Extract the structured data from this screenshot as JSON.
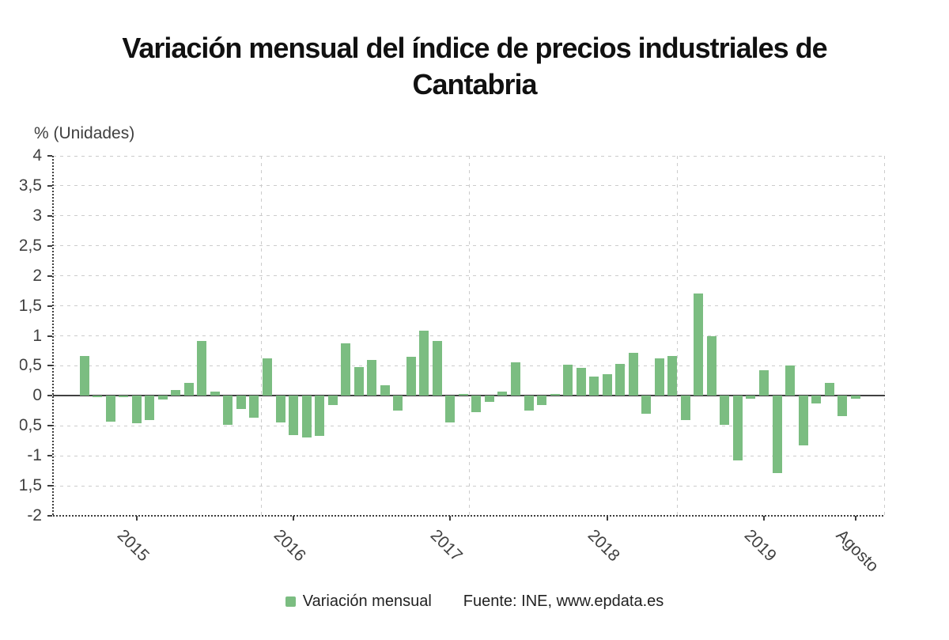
{
  "title_lines": [
    "Variación mensual del índice de precios industriales de",
    "Cantabria"
  ],
  "y_axis_title": "% (Unidades)",
  "legend": {
    "label": "Variación mensual"
  },
  "source": "Fuente: INE, www.epdata.es",
  "colors": {
    "bar": "#7bbd81",
    "grid": "#cccccc",
    "axis": "#3d3d3d",
    "tick_text": "#404040",
    "title_text": "#111111",
    "legend_text": "#222222"
  },
  "y_axis": {
    "ticks": [
      {
        "label": "4",
        "value": 4
      },
      {
        "label": "3,5",
        "value": 3.5
      },
      {
        "label": "3",
        "value": 3
      },
      {
        "label": "2,5",
        "value": 2.5
      },
      {
        "label": "2",
        "value": 2
      },
      {
        "label": "1,5",
        "value": 1.5
      },
      {
        "label": "1",
        "value": 1
      },
      {
        "label": "0,5",
        "value": 0.5
      },
      {
        "label": "0",
        "value": 0
      },
      {
        "label": "-0,5",
        "value": -0.5
      },
      {
        "label": "-1",
        "value": -1
      },
      {
        "label": "-1,5",
        "value": -1.5
      },
      {
        "label": "-2",
        "value": -2
      }
    ]
  },
  "x_axis": {
    "ticks": [
      {
        "label": "2015",
        "month_index": 4
      },
      {
        "label": "2016",
        "month_index": 16
      },
      {
        "label": "2017",
        "month_index": 28
      },
      {
        "label": "2018",
        "month_index": 40
      },
      {
        "label": "2019",
        "month_index": 52
      },
      {
        "label": "Agosto",
        "month_index": 59
      }
    ]
  },
  "chart_data": {
    "type": "bar",
    "title": "Variación mensual del índice de precios industriales de Cantabria",
    "series_name": "Variación mensual",
    "xlabel": "",
    "ylabel": "% (Unidades)",
    "ylim": [
      -2,
      4
    ],
    "grid": true,
    "legend_position": "bottom",
    "bar_color": "#7bbd81",
    "x": [
      "2014-09",
      "2014-10",
      "2014-11",
      "2014-12",
      "2015-01",
      "2015-02",
      "2015-03",
      "2015-04",
      "2015-05",
      "2015-06",
      "2015-07",
      "2015-08",
      "2015-09",
      "2015-10",
      "2015-11",
      "2015-12",
      "2016-01",
      "2016-02",
      "2016-03",
      "2016-04",
      "2016-05",
      "2016-06",
      "2016-07",
      "2016-08",
      "2016-09",
      "2016-10",
      "2016-11",
      "2016-12",
      "2017-01",
      "2017-02",
      "2017-03",
      "2017-04",
      "2017-05",
      "2017-06",
      "2017-07",
      "2017-08",
      "2017-09",
      "2017-10",
      "2017-11",
      "2017-12",
      "2018-01",
      "2018-02",
      "2018-03",
      "2018-04",
      "2018-05",
      "2018-06",
      "2018-07",
      "2018-08",
      "2018-09",
      "2018-10",
      "2018-11",
      "2018-12",
      "2019-01",
      "2019-02",
      "2019-03",
      "2019-04",
      "2019-05",
      "2019-06",
      "2019-07",
      "2019-08"
    ],
    "values": [
      0.67,
      -0.02,
      -0.43,
      -0.02,
      -0.46,
      -0.4,
      -0.06,
      0.1,
      0.21,
      0.91,
      0.07,
      -0.49,
      -0.22,
      -0.37,
      0.63,
      -0.44,
      -0.66,
      -0.7,
      -0.67,
      -0.15,
      0.88,
      0.48,
      0.6,
      0.18,
      -0.25,
      0.65,
      1.09,
      0.91,
      -0.45,
      0.03,
      -0.27,
      -0.1,
      0.07,
      0.56,
      -0.24,
      -0.16,
      0.03,
      0.52,
      0.46,
      0.32,
      0.36,
      0.53,
      0.72,
      -0.3,
      0.62,
      0.67,
      -0.4,
      1.7,
      1.0,
      -0.48,
      -1.08,
      -0.05,
      0.42,
      -1.29,
      0.5,
      -0.83,
      -0.13,
      0.21,
      -0.34,
      -0.05
    ]
  }
}
